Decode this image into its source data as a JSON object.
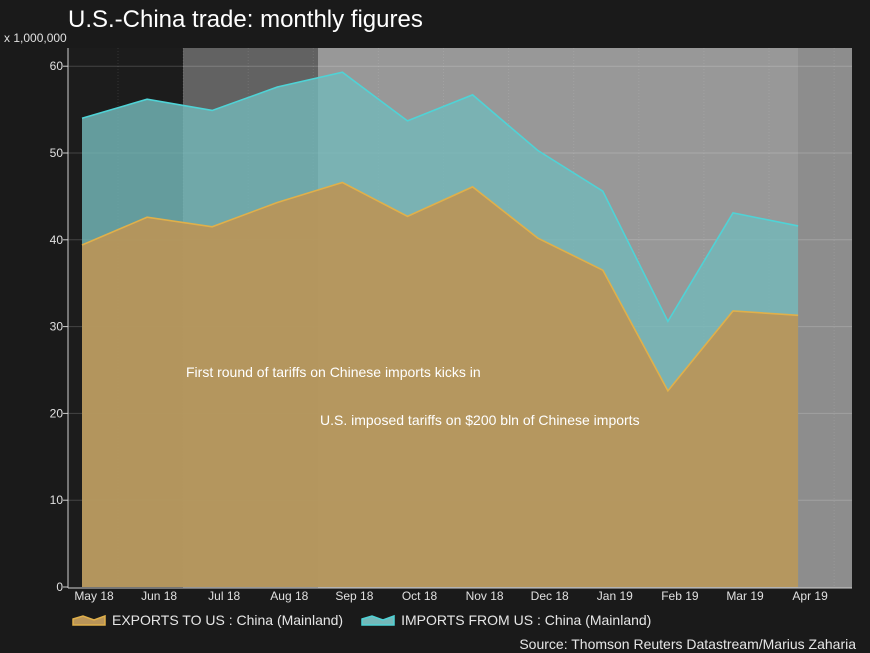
{
  "title": "U.S.-China trade: monthly figures",
  "unit_label": "x 1,000,000",
  "source": "Source: Thomson Reuters Datastream/Marius Zaharia",
  "colors": {
    "exports_fill": "#ba9558",
    "exports_line": "#e0b04a",
    "imports_fill": "#74b8b9",
    "imports_line": "#4fd3d6",
    "plot_background": "#8d8d8d",
    "page_background": "#1a1a1a"
  },
  "chart_data": {
    "type": "area",
    "categories": [
      "May 18",
      "Jun 18",
      "Jul 18",
      "Aug 18",
      "Sep 18",
      "Oct 18",
      "Nov 18",
      "Dec 18",
      "Jan 19",
      "Feb 19",
      "Mar 19",
      "Apr 19"
    ],
    "series": [
      {
        "name": "EXPORTS TO US : China (Mainland)",
        "values": [
          39.4,
          42.6,
          41.5,
          44.3,
          46.6,
          42.7,
          46.1,
          40.2,
          36.5,
          22.6,
          31.8,
          31.3
        ]
      },
      {
        "name": "IMPORTS FROM US : China (Mainland)",
        "values": [
          54.0,
          56.2,
          54.9,
          57.6,
          59.3,
          53.7,
          56.7,
          50.3,
          45.6,
          30.6,
          43.1,
          41.6
        ]
      }
    ],
    "ylim": [
      0,
      60
    ],
    "yticks": [
      0,
      10,
      20,
      30,
      40,
      50,
      60
    ],
    "grid": true,
    "legend_position": "bottom-left",
    "annotations": [
      {
        "text": "First round of tariffs on Chinese imports kicks in",
        "from": "Jul 18"
      },
      {
        "text": "U.S. imposed tariffs on $200 bln of Chinese imports",
        "from": "Sep 18"
      }
    ]
  }
}
